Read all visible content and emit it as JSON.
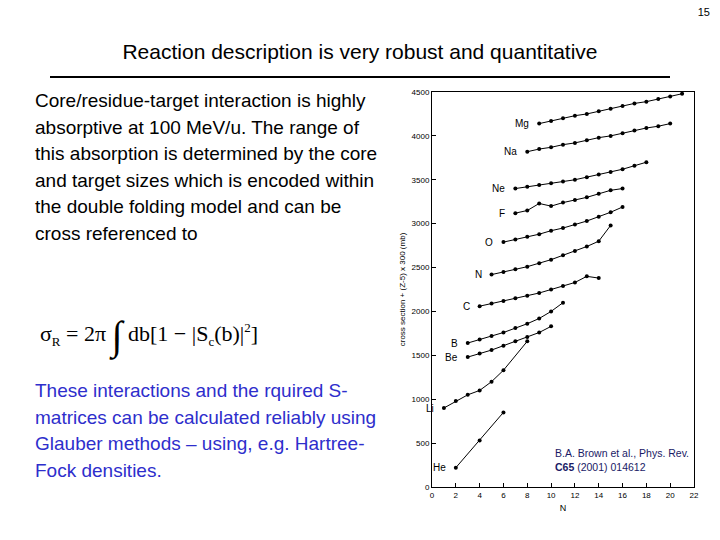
{
  "slide": {
    "page_number": "15",
    "title": "Reaction description is very robust and quantitative",
    "paragraph": "Core/residue-target interaction is highly absorptive at 100 MeV/u. The range of this absorption is determined by the core and target sizes which is encoded within the double folding model and can be cross referenced to",
    "formula": [
      {
        "t": "σ"
      },
      {
        "sub": "R"
      },
      {
        "t": " = 2π "
      },
      {
        "big": "∫"
      },
      {
        "t": " db[1 − |S"
      },
      {
        "sub": "c"
      },
      {
        "t": "(b)|"
      },
      {
        "sup": "2"
      },
      {
        "t": "]"
      }
    ],
    "paragraph_blue": "These interactions and the rquired S-matrices can be calculated reliably using Glauber methods – using, e.g. Hartree-Fock densities.",
    "citation": {
      "line1": "B.A. Brown et al., Phys. Rev.",
      "journal_volume": "C65",
      "rest": "(2001) 014612"
    }
  },
  "chart_data": {
    "type": "line",
    "x_label": "N",
    "y_label": "cross section + (Z-5) x 300 (mb)",
    "xlim": [
      0,
      22
    ],
    "xticks": [
      0,
      2,
      4,
      6,
      8,
      10,
      12,
      14,
      16,
      18,
      20,
      22
    ],
    "ylim": [
      0,
      4500
    ],
    "yticks": [
      0,
      500,
      1000,
      1500,
      2000,
      2500,
      3000,
      3500,
      4000,
      4500
    ],
    "grid": false,
    "color": "#000000",
    "marker": "circle",
    "line_style": "solid",
    "series": [
      {
        "name": "He",
        "x": [
          2,
          4,
          6
        ],
        "values": [
          220,
          530,
          850
        ]
      },
      {
        "name": "Li",
        "x": [
          1,
          2,
          3,
          4,
          5,
          6,
          8
        ],
        "values": [
          900,
          980,
          1050,
          1100,
          1200,
          1330,
          1660
        ]
      },
      {
        "name": "Be",
        "x": [
          3,
          4,
          5,
          6,
          7,
          8,
          9,
          10
        ],
        "values": [
          1480,
          1520,
          1560,
          1610,
          1660,
          1710,
          1760,
          1830
        ]
      },
      {
        "name": "B",
        "x": [
          3,
          4,
          5,
          6,
          7,
          8,
          9,
          10,
          11
        ],
        "values": [
          1640,
          1680,
          1720,
          1760,
          1810,
          1860,
          1920,
          2000,
          2100
        ]
      },
      {
        "name": "C",
        "x": [
          4,
          5,
          6,
          7,
          8,
          9,
          10,
          11,
          12,
          13,
          14
        ],
        "values": [
          2060,
          2090,
          2120,
          2150,
          2180,
          2210,
          2250,
          2290,
          2330,
          2400,
          2380
        ]
      },
      {
        "name": "N",
        "x": [
          5,
          6,
          7,
          8,
          9,
          10,
          11,
          12,
          13,
          14,
          15
        ],
        "values": [
          2420,
          2450,
          2480,
          2510,
          2550,
          2590,
          2640,
          2690,
          2740,
          2800,
          2980
        ]
      },
      {
        "name": "O",
        "x": [
          6,
          7,
          8,
          9,
          10,
          11,
          12,
          13,
          14,
          15,
          16
        ],
        "values": [
          2790,
          2820,
          2850,
          2880,
          2920,
          2950,
          2990,
          3030,
          3080,
          3130,
          3190
        ]
      },
      {
        "name": "F",
        "x": [
          7,
          8,
          9,
          10,
          11,
          12,
          13,
          14,
          15,
          16
        ],
        "values": [
          3120,
          3150,
          3230,
          3200,
          3240,
          3270,
          3300,
          3340,
          3380,
          3400
        ]
      },
      {
        "name": "Ne",
        "x": [
          7,
          8,
          9,
          10,
          11,
          12,
          13,
          14,
          15,
          16,
          17,
          18
        ],
        "values": [
          3400,
          3420,
          3440,
          3460,
          3480,
          3500,
          3530,
          3560,
          3590,
          3620,
          3660,
          3700
        ]
      },
      {
        "name": "Na",
        "x": [
          8,
          9,
          10,
          11,
          12,
          13,
          14,
          15,
          16,
          17,
          18,
          19,
          20
        ],
        "values": [
          3820,
          3850,
          3870,
          3900,
          3920,
          3950,
          3980,
          4000,
          4030,
          4060,
          4090,
          4110,
          4140
        ]
      },
      {
        "name": "Mg",
        "x": [
          9,
          10,
          11,
          12,
          13,
          14,
          15,
          16,
          17,
          18,
          19,
          20,
          21
        ],
        "values": [
          4140,
          4170,
          4200,
          4230,
          4250,
          4280,
          4310,
          4340,
          4370,
          4390,
          4420,
          4450,
          4480
        ]
      }
    ]
  }
}
